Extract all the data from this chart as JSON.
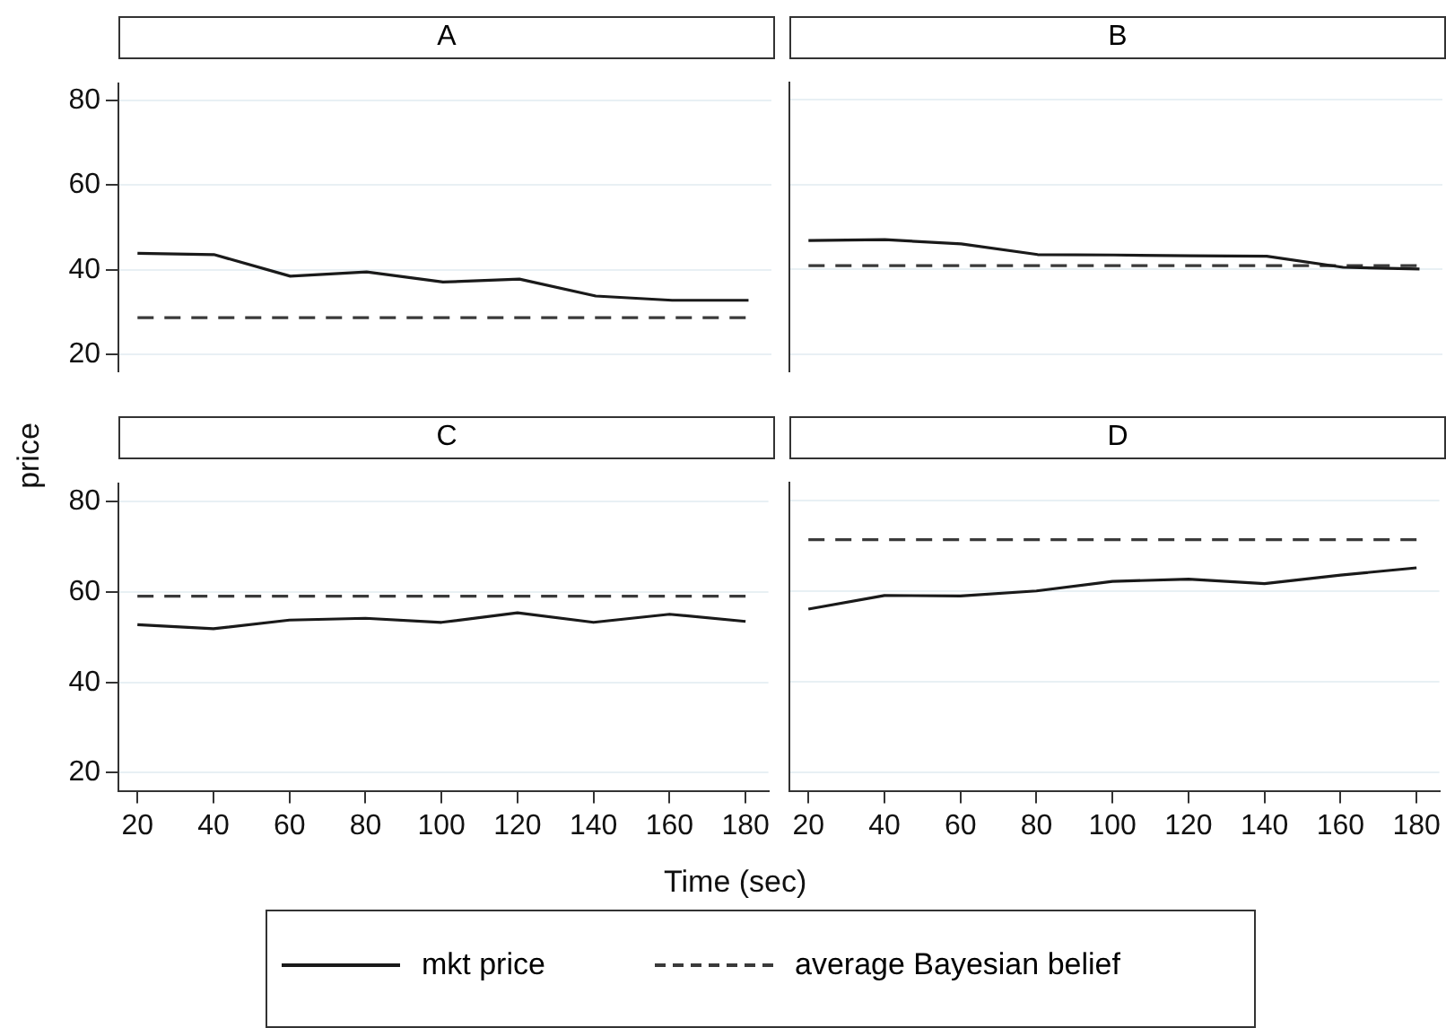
{
  "chart_data": [
    {
      "type": "line",
      "title": "A",
      "ylabel": "price",
      "x": [
        20,
        40,
        60,
        80,
        100,
        120,
        140,
        160,
        180
      ],
      "xlim": [
        15,
        186
      ],
      "xticks": [
        20,
        40,
        60,
        80,
        100,
        120,
        140,
        160,
        180
      ],
      "ylim": [
        16,
        84
      ],
      "yticks": [
        20,
        40,
        60,
        80
      ],
      "grid": "y",
      "tick_labels": "y",
      "marker": "none",
      "legend": "bottom",
      "series": [
        {
          "name": "mkt price",
          "color": "#1a1a1a",
          "line_style": "solid",
          "values": [
            43.9,
            43.6,
            38.5,
            39.5,
            37.1,
            37.8,
            33.8,
            32.8,
            32.8
          ]
        },
        {
          "name": "average Bayesian belief",
          "color": "#3a3a3a",
          "line_style": "dashed",
          "values": [
            28.7,
            28.7,
            28.7,
            28.7,
            28.7,
            28.7,
            28.7,
            28.7,
            28.7
          ]
        }
      ]
    },
    {
      "type": "line",
      "title": "B",
      "x": [
        20,
        40,
        60,
        80,
        100,
        120,
        140,
        160,
        180
      ],
      "xlim": [
        15,
        186
      ],
      "xticks": [
        20,
        40,
        60,
        80,
        100,
        120,
        140,
        160,
        180
      ],
      "ylim": [
        16,
        84
      ],
      "yticks": [
        20,
        40,
        60,
        80
      ],
      "grid": "y",
      "tick_labels": false,
      "marker": "none",
      "series": [
        {
          "color": "#1a1a1a",
          "line_style": "solid",
          "values": [
            46.8,
            47.0,
            46.0,
            43.5,
            43.4,
            43.2,
            43.1,
            40.5,
            40.1
          ]
        },
        {
          "color": "#3a3a3a",
          "line_style": "dashed",
          "values": [
            40.9,
            40.9,
            40.9,
            40.9,
            40.9,
            40.9,
            40.9,
            40.9,
            40.9
          ]
        }
      ]
    },
    {
      "type": "line",
      "title": "C",
      "xlabel": "Time (sec)",
      "x": [
        20,
        40,
        60,
        80,
        100,
        120,
        140,
        160,
        180
      ],
      "xlim": [
        15,
        186
      ],
      "xticks": [
        20,
        40,
        60,
        80,
        100,
        120,
        140,
        160,
        180
      ],
      "ylim": [
        16,
        84
      ],
      "yticks": [
        20,
        40,
        60,
        80
      ],
      "grid": "y",
      "marker": "none",
      "series": [
        {
          "color": "#1a1a1a",
          "line_style": "solid",
          "values": [
            52.8,
            51.9,
            53.8,
            54.2,
            53.3,
            55.4,
            53.3,
            55.1,
            53.5
          ]
        },
        {
          "color": "#3a3a3a",
          "line_style": "dashed",
          "values": [
            59.1,
            59.1,
            59.1,
            59.1,
            59.1,
            59.1,
            59.1,
            59.1,
            59.1
          ]
        }
      ]
    },
    {
      "type": "line",
      "title": "D",
      "x": [
        20,
        40,
        60,
        80,
        100,
        120,
        140,
        160,
        180
      ],
      "xlim": [
        15,
        186
      ],
      "xticks": [
        20,
        40,
        60,
        80,
        100,
        120,
        140,
        160,
        180
      ],
      "ylim": [
        16,
        84
      ],
      "yticks": [
        20,
        40,
        60,
        80
      ],
      "grid": "y",
      "tick_labels": "x",
      "marker": "none",
      "series": [
        {
          "color": "#1a1a1a",
          "line_style": "solid",
          "values": [
            56.1,
            59.1,
            59.0,
            60.1,
            62.2,
            62.7,
            61.7,
            63.6,
            65.2
          ]
        },
        {
          "color": "#3a3a3a",
          "line_style": "dashed",
          "values": [
            71.4,
            71.4,
            71.4,
            71.4,
            71.4,
            71.4,
            71.4,
            71.4,
            71.4
          ]
        }
      ]
    }
  ]
}
